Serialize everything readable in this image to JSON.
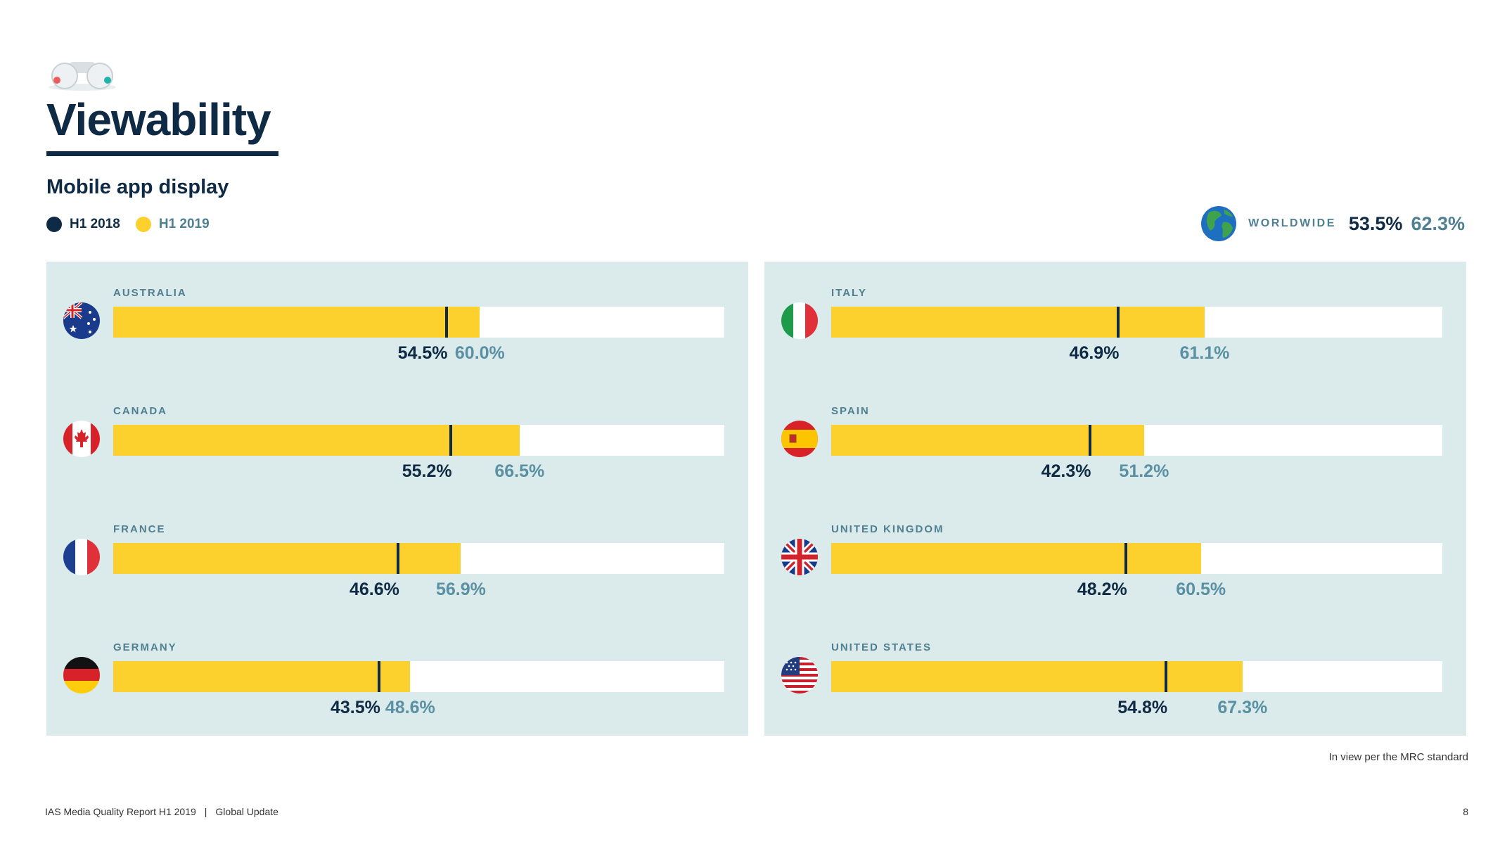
{
  "page": {
    "title": "Viewability",
    "subtitle": "Mobile app display",
    "footnote": "In view per the MRC standard",
    "footer_left": "IAS Media Quality Report H1 2019",
    "footer_sep": "|",
    "footer_right": "Global Update",
    "page_number": "8"
  },
  "legend": [
    {
      "name": "H1 2018",
      "color": "#0e2a44",
      "shape": "dot"
    },
    {
      "name": "H1 2019",
      "color": "#fdd12d",
      "shape": "dot"
    }
  ],
  "worldwide": {
    "label": "WORLDWIDE",
    "h1_2018": "53.5%",
    "h1_2019": "62.3%",
    "icon": "globe-icon"
  },
  "colors": {
    "navy": "#0e2a44",
    "yellow": "#fdd12d",
    "teal": "#4f8091",
    "panel_bg": "#dbeaea"
  },
  "chart_data": {
    "type": "bar",
    "orientation": "horizontal",
    "xlim": [
      0,
      100
    ],
    "unit": "%",
    "series": [
      {
        "name": "H1 2018",
        "style": "marker",
        "color": "#0e2a44"
      },
      {
        "name": "H1 2019",
        "style": "bar",
        "color": "#fdd12d"
      }
    ],
    "categories": [
      "AUSTRALIA",
      "CANADA",
      "FRANCE",
      "GERMANY",
      "ITALY",
      "SPAIN",
      "UNITED KINGDOM",
      "UNITED STATES"
    ],
    "rows": [
      {
        "country": "AUSTRALIA",
        "flag": "australia-flag-icon",
        "h1_2018": 54.5,
        "h1_2019": 60.0,
        "label_2018": "54.5%",
        "label_2019": "60.0%"
      },
      {
        "country": "CANADA",
        "flag": "canada-flag-icon",
        "h1_2018": 55.2,
        "h1_2019": 66.5,
        "label_2018": "55.2%",
        "label_2019": "66.5%"
      },
      {
        "country": "FRANCE",
        "flag": "france-flag-icon",
        "h1_2018": 46.6,
        "h1_2019": 56.9,
        "label_2018": "46.6%",
        "label_2019": "56.9%"
      },
      {
        "country": "GERMANY",
        "flag": "germany-flag-icon",
        "h1_2018": 43.5,
        "h1_2019": 48.6,
        "label_2018": "43.5%",
        "label_2019": "48.6%"
      },
      {
        "country": "ITALY",
        "flag": "italy-flag-icon",
        "h1_2018": 46.9,
        "h1_2019": 61.1,
        "label_2018": "46.9%",
        "label_2019": "61.1%"
      },
      {
        "country": "SPAIN",
        "flag": "spain-flag-icon",
        "h1_2018": 42.3,
        "h1_2019": 51.2,
        "label_2018": "42.3%",
        "label_2019": "51.2%"
      },
      {
        "country": "UNITED KINGDOM",
        "flag": "uk-flag-icon",
        "h1_2018": 48.2,
        "h1_2019": 60.5,
        "label_2018": "48.2%",
        "label_2019": "60.5%"
      },
      {
        "country": "UNITED STATES",
        "flag": "usa-flag-icon",
        "h1_2018": 54.8,
        "h1_2019": 67.3,
        "label_2018": "54.8%",
        "label_2019": "67.3%"
      }
    ]
  }
}
